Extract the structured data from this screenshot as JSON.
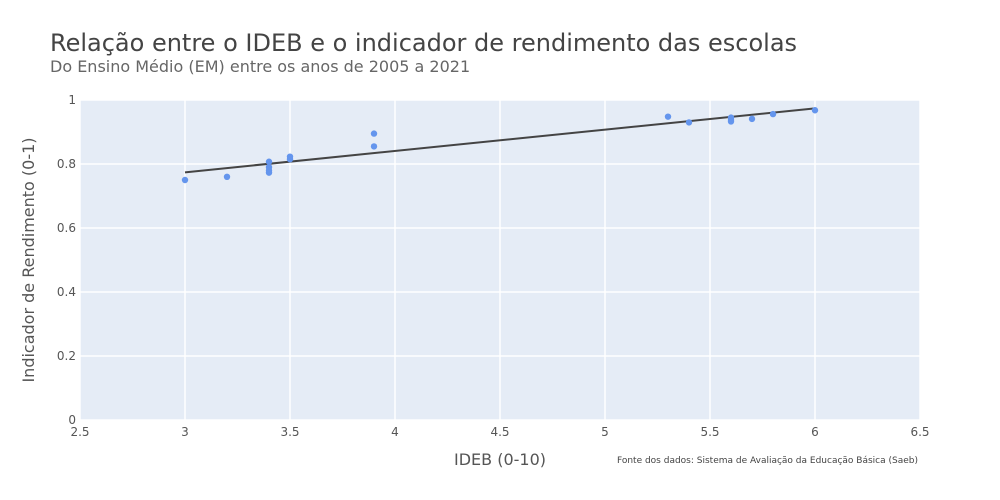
{
  "chart_data": {
    "type": "scatter",
    "title": "Relação entre o IDEB e o indicador de rendimento das escolas",
    "subtitle": "Do Ensino Médio (EM) entre os anos de 2005 a 2021",
    "xlabel": "IDEB (0-10)",
    "ylabel": "Indicador de Rendimento (0-1)",
    "source": "Fonte dos dados: Sistema de Avaliação da Educação Básica (Saeb)",
    "xlim": [
      2.5,
      6.5
    ],
    "ylim": [
      0,
      1
    ],
    "xticks": [
      2.5,
      3,
      3.5,
      4,
      4.5,
      5,
      5.5,
      6,
      6.5
    ],
    "xtick_labels": [
      "2.5",
      "3",
      "3.5",
      "4",
      "4.5",
      "5",
      "5.5",
      "6",
      "6.5"
    ],
    "yticks": [
      0,
      0.2,
      0.4,
      0.6,
      0.8,
      1
    ],
    "ytick_labels": [
      "0",
      "0.2",
      "0.4",
      "0.6",
      "0.8",
      "1"
    ],
    "grid": true,
    "point_color": "#6495ED",
    "line_color": "#444444",
    "plot_bg": "#E5ECF6",
    "points": [
      {
        "x": 3.0,
        "y": 0.75
      },
      {
        "x": 3.2,
        "y": 0.76
      },
      {
        "x": 3.4,
        "y": 0.807
      },
      {
        "x": 3.4,
        "y": 0.79
      },
      {
        "x": 3.4,
        "y": 0.78
      },
      {
        "x": 3.4,
        "y": 0.773
      },
      {
        "x": 3.5,
        "y": 0.823
      },
      {
        "x": 3.5,
        "y": 0.815
      },
      {
        "x": 3.9,
        "y": 0.895
      },
      {
        "x": 3.9,
        "y": 0.855
      },
      {
        "x": 5.3,
        "y": 0.948
      },
      {
        "x": 5.4,
        "y": 0.93
      },
      {
        "x": 5.6,
        "y": 0.945
      },
      {
        "x": 5.6,
        "y": 0.938
      },
      {
        "x": 5.6,
        "y": 0.933
      },
      {
        "x": 5.7,
        "y": 0.941
      },
      {
        "x": 5.8,
        "y": 0.956
      },
      {
        "x": 6.0,
        "y": 0.968
      }
    ],
    "trendline": {
      "x": [
        3.0,
        6.0
      ],
      "y": [
        0.774,
        0.974
      ]
    }
  }
}
